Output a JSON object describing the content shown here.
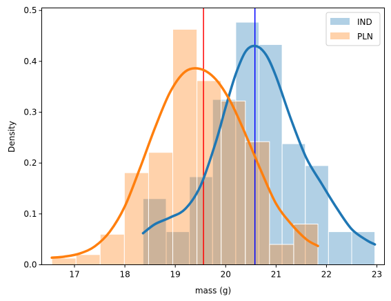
{
  "chart_data": {
    "type": "histogram",
    "xlabel": "mass (g)",
    "ylabel": "Density",
    "xlim": [
      16.35,
      23.15
    ],
    "ylim": [
      0,
      0.505
    ],
    "x_ticks": [
      17,
      18,
      19,
      20,
      21,
      22,
      23
    ],
    "y_ticks": [
      0.0,
      0.1,
      0.2,
      0.3,
      0.4,
      0.5
    ],
    "y_tick_labels": [
      "0.0",
      "0.1",
      "0.2",
      "0.3",
      "0.4",
      "0.5"
    ],
    "legend_position": "top-right",
    "series": [
      {
        "name": "IND",
        "color": "#1f77b4",
        "bins": [
          {
            "x0": 18.36,
            "x1": 18.82,
            "y": 0.13
          },
          {
            "x0": 18.82,
            "x1": 19.28,
            "y": 0.065
          },
          {
            "x0": 19.28,
            "x1": 19.74,
            "y": 0.173
          },
          {
            "x0": 19.74,
            "x1": 20.2,
            "y": 0.325
          },
          {
            "x0": 20.2,
            "x1": 20.66,
            "y": 0.477
          },
          {
            "x0": 20.66,
            "x1": 21.12,
            "y": 0.433
          },
          {
            "x0": 21.12,
            "x1": 21.58,
            "y": 0.238
          },
          {
            "x0": 21.58,
            "x1": 22.04,
            "y": 0.195
          },
          {
            "x0": 22.04,
            "x1": 22.5,
            "y": 0.065
          },
          {
            "x0": 22.5,
            "x1": 22.96,
            "y": 0.065
          }
        ],
        "kde": {
          "x": [
            18.36,
            18.6,
            18.9,
            19.2,
            19.5,
            19.8,
            20.0,
            20.2,
            20.4,
            20.6,
            20.8,
            21.0,
            21.3,
            21.6,
            21.9,
            22.2,
            22.5,
            22.8,
            22.96
          ],
          "y": [
            0.062,
            0.08,
            0.093,
            0.11,
            0.155,
            0.24,
            0.31,
            0.375,
            0.42,
            0.43,
            0.413,
            0.37,
            0.285,
            0.21,
            0.16,
            0.112,
            0.07,
            0.048,
            0.04
          ]
        },
        "mean": 20.58,
        "mean_line_color": "#0000ff"
      },
      {
        "name": "PLN",
        "color": "#ff7f0e",
        "bins": [
          {
            "x0": 16.55,
            "x1": 17.03,
            "y": 0.013
          },
          {
            "x0": 17.03,
            "x1": 17.51,
            "y": 0.02
          },
          {
            "x0": 17.51,
            "x1": 17.99,
            "y": 0.06
          },
          {
            "x0": 17.99,
            "x1": 18.47,
            "y": 0.181
          },
          {
            "x0": 18.47,
            "x1": 18.95,
            "y": 0.221
          },
          {
            "x0": 18.95,
            "x1": 19.43,
            "y": 0.463
          },
          {
            "x0": 19.43,
            "x1": 19.91,
            "y": 0.362
          },
          {
            "x0": 19.91,
            "x1": 20.39,
            "y": 0.322
          },
          {
            "x0": 20.39,
            "x1": 20.87,
            "y": 0.242
          },
          {
            "x0": 20.87,
            "x1": 21.35,
            "y": 0.04
          },
          {
            "x0": 21.35,
            "x1": 21.83,
            "y": 0.08
          }
        ],
        "kde": {
          "x": [
            16.55,
            16.8,
            17.1,
            17.4,
            17.7,
            18.0,
            18.3,
            18.6,
            18.9,
            19.2,
            19.5,
            19.8,
            20.1,
            20.4,
            20.7,
            21.0,
            21.3,
            21.6,
            21.83
          ],
          "y": [
            0.014,
            0.016,
            0.022,
            0.036,
            0.065,
            0.115,
            0.19,
            0.27,
            0.34,
            0.38,
            0.385,
            0.365,
            0.32,
            0.255,
            0.185,
            0.12,
            0.08,
            0.05,
            0.037
          ]
        },
        "mean": 19.56,
        "mean_line_color": "#ff0000"
      }
    ]
  }
}
